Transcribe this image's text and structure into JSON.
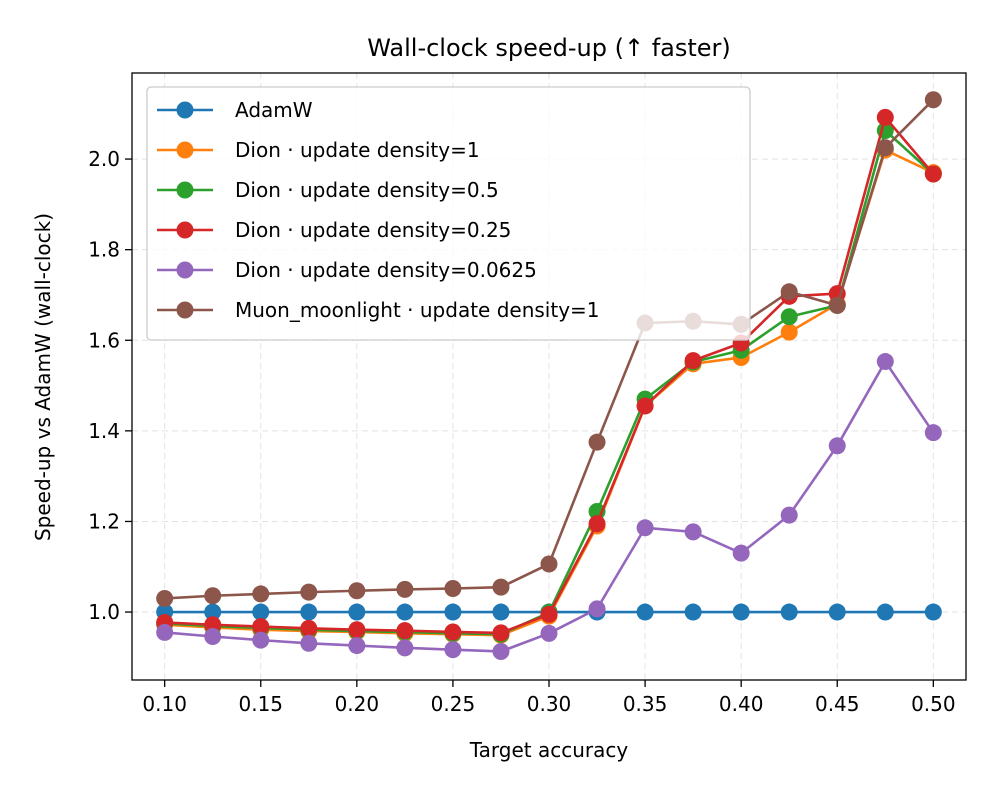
{
  "chart_data": {
    "type": "line",
    "title": "Wall-clock speed-up (↑ faster)",
    "xlabel": "Target accuracy",
    "ylabel": "Speed-up vs AdamW (wall-clock)",
    "xlim": [
      0.083,
      0.517
    ],
    "ylim": [
      0.85,
      2.19
    ],
    "grid": true,
    "legend_position": "upper-left",
    "x_ticks": [
      0.1,
      0.15,
      0.2,
      0.25,
      0.3,
      0.35,
      0.4,
      0.45,
      0.5
    ],
    "x_tick_labels": [
      "0.10",
      "0.15",
      "0.20",
      "0.25",
      "0.30",
      "0.35",
      "0.40",
      "0.45",
      "0.50"
    ],
    "y_ticks": [
      1.0,
      1.2,
      1.4,
      1.6,
      1.8,
      2.0
    ],
    "y_tick_labels": [
      "1.0",
      "1.2",
      "1.4",
      "1.6",
      "1.8",
      "2.0"
    ],
    "x": [
      0.1,
      0.125,
      0.15,
      0.175,
      0.2,
      0.225,
      0.25,
      0.275,
      0.3,
      0.325,
      0.35,
      0.375,
      0.4,
      0.425,
      0.45,
      0.475,
      0.5
    ],
    "series": [
      {
        "name": "AdamW",
        "color": "#1f77b4",
        "values": [
          1.0,
          1.0,
          1.0,
          1.0,
          1.0,
          1.0,
          1.0,
          1.0,
          1.0,
          1.0,
          1.0,
          1.0,
          1.0,
          1.0,
          1.0,
          1.0,
          1.0
        ]
      },
      {
        "name": "Dion · update density=1",
        "color": "#ff7f0e",
        "values": [
          0.972,
          0.966,
          0.961,
          0.958,
          0.956,
          0.953,
          0.951,
          0.949,
          0.991,
          1.19,
          1.455,
          1.548,
          1.562,
          1.618,
          1.68,
          2.02,
          1.97
        ]
      },
      {
        "name": "Dion · update density=0.5",
        "color": "#2ca02c",
        "values": [
          0.975,
          0.969,
          0.965,
          0.961,
          0.958,
          0.956,
          0.953,
          0.951,
          0.999,
          1.222,
          1.47,
          1.552,
          1.578,
          1.652,
          1.677,
          2.063,
          1.967
        ]
      },
      {
        "name": "Dion · update density=0.25",
        "color": "#d62728",
        "values": [
          0.977,
          0.972,
          0.968,
          0.964,
          0.961,
          0.959,
          0.956,
          0.954,
          0.995,
          1.195,
          1.455,
          1.555,
          1.594,
          1.697,
          1.703,
          2.092,
          1.967
        ]
      },
      {
        "name": "Dion · update density=0.0625",
        "color": "#9467bd",
        "values": [
          0.955,
          0.946,
          0.938,
          0.931,
          0.926,
          0.921,
          0.917,
          0.913,
          0.953,
          1.007,
          1.186,
          1.177,
          1.13,
          1.214,
          1.367,
          1.553,
          1.396
        ]
      },
      {
        "name": "Muon_moonlight · update density=1",
        "color": "#8c564b",
        "values": [
          1.03,
          1.036,
          1.04,
          1.044,
          1.047,
          1.05,
          1.052,
          1.055,
          1.106,
          1.375,
          1.638,
          1.642,
          1.635,
          1.707,
          1.677,
          2.025,
          2.131
        ]
      }
    ]
  }
}
